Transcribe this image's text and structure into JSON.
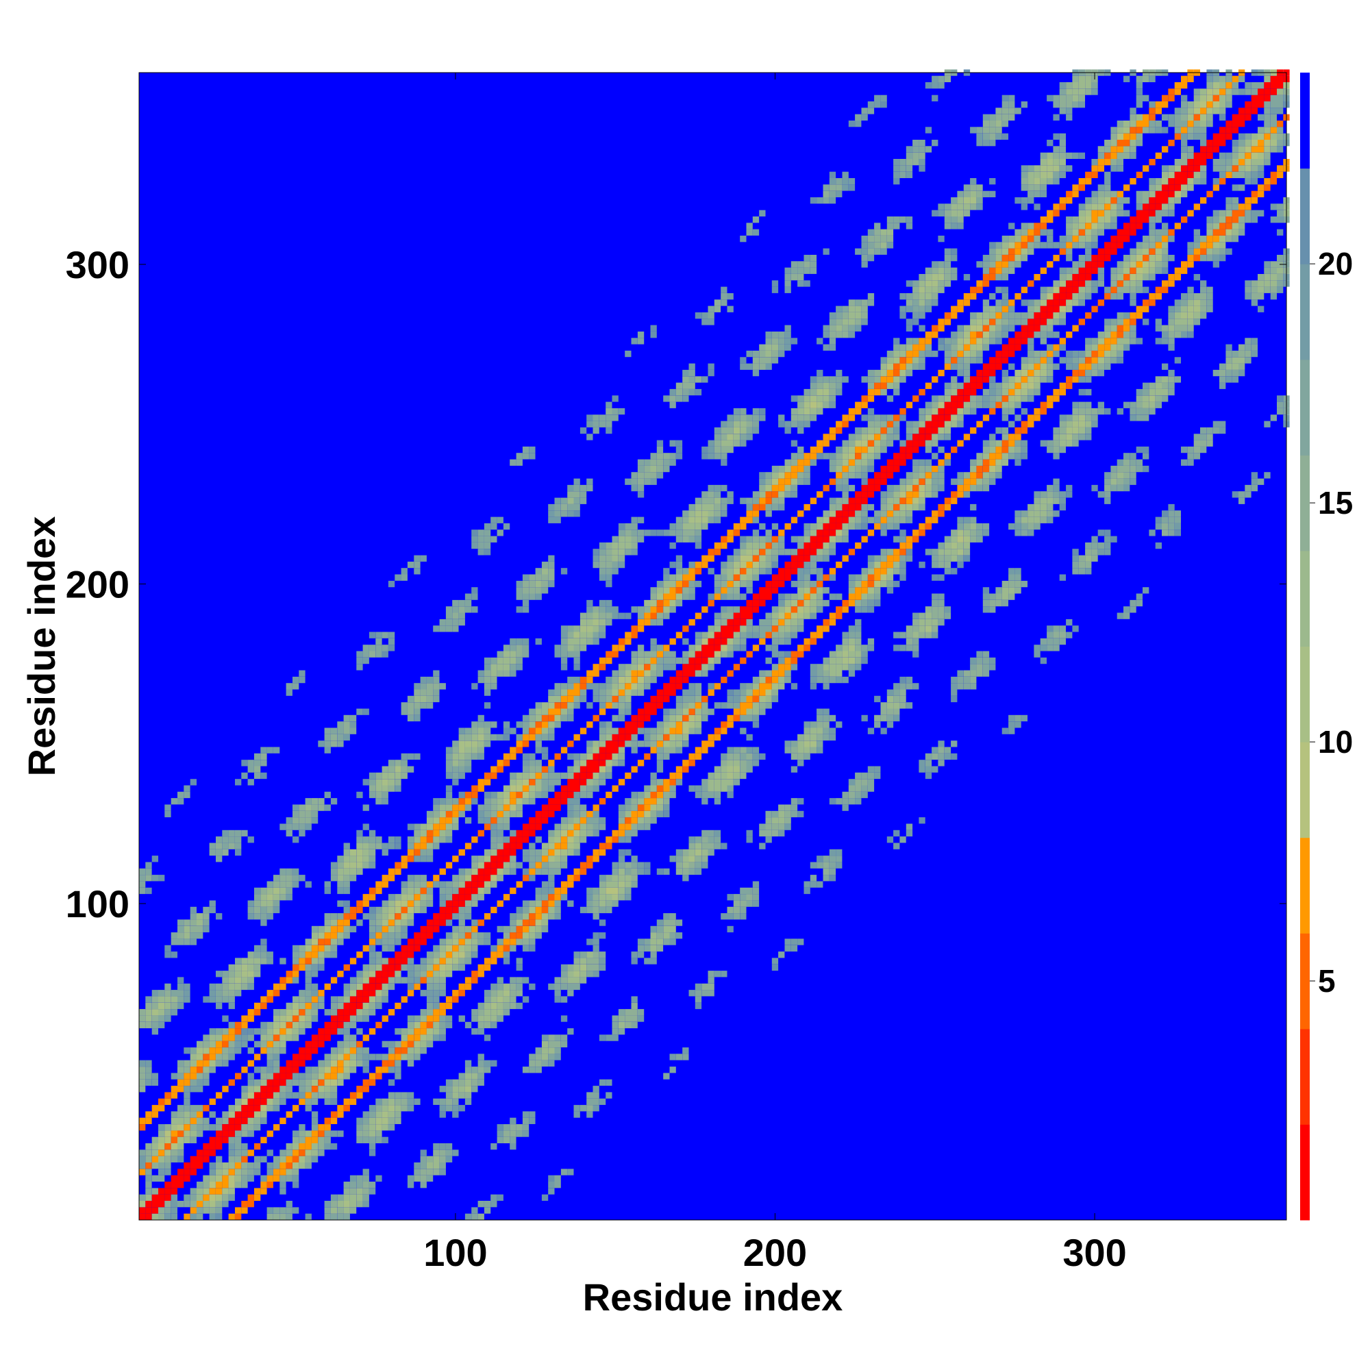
{
  "chart_data": {
    "type": "heatmap",
    "title": "",
    "xlabel": "Residue index",
    "ylabel": "Residue index",
    "xlim": [
      1,
      360
    ],
    "ylim": [
      1,
      360
    ],
    "x_ticks": [
      100,
      200,
      300
    ],
    "y_ticks": [
      100,
      200,
      300
    ],
    "colorbar": {
      "range": [
        0,
        24
      ],
      "ticks": [
        5,
        10,
        15,
        20
      ],
      "levels": [
        {
          "max": 2,
          "color": "#ff0000"
        },
        {
          "max": 4,
          "color": "#ff3300"
        },
        {
          "max": 6,
          "color": "#ff6600"
        },
        {
          "max": 8,
          "color": "#ff9900"
        },
        {
          "max": 10,
          "color": "#b5c27e"
        },
        {
          "max": 12,
          "color": "#a8bf86"
        },
        {
          "max": 14,
          "color": "#9cb98d"
        },
        {
          "max": 16,
          "color": "#8faf96"
        },
        {
          "max": 18,
          "color": "#81a69e"
        },
        {
          "max": 20,
          "color": "#739ca6"
        },
        {
          "max": 22,
          "color": "#6790ad"
        },
        {
          "max": 24,
          "color": "#0000ff"
        }
      ]
    },
    "background_color": "#0000ff",
    "description_values": {
      "diagonal_distance": 1,
      "helix_offset_bands": [
        14,
        29
      ],
      "contact_band_max_offset": 120
    }
  }
}
